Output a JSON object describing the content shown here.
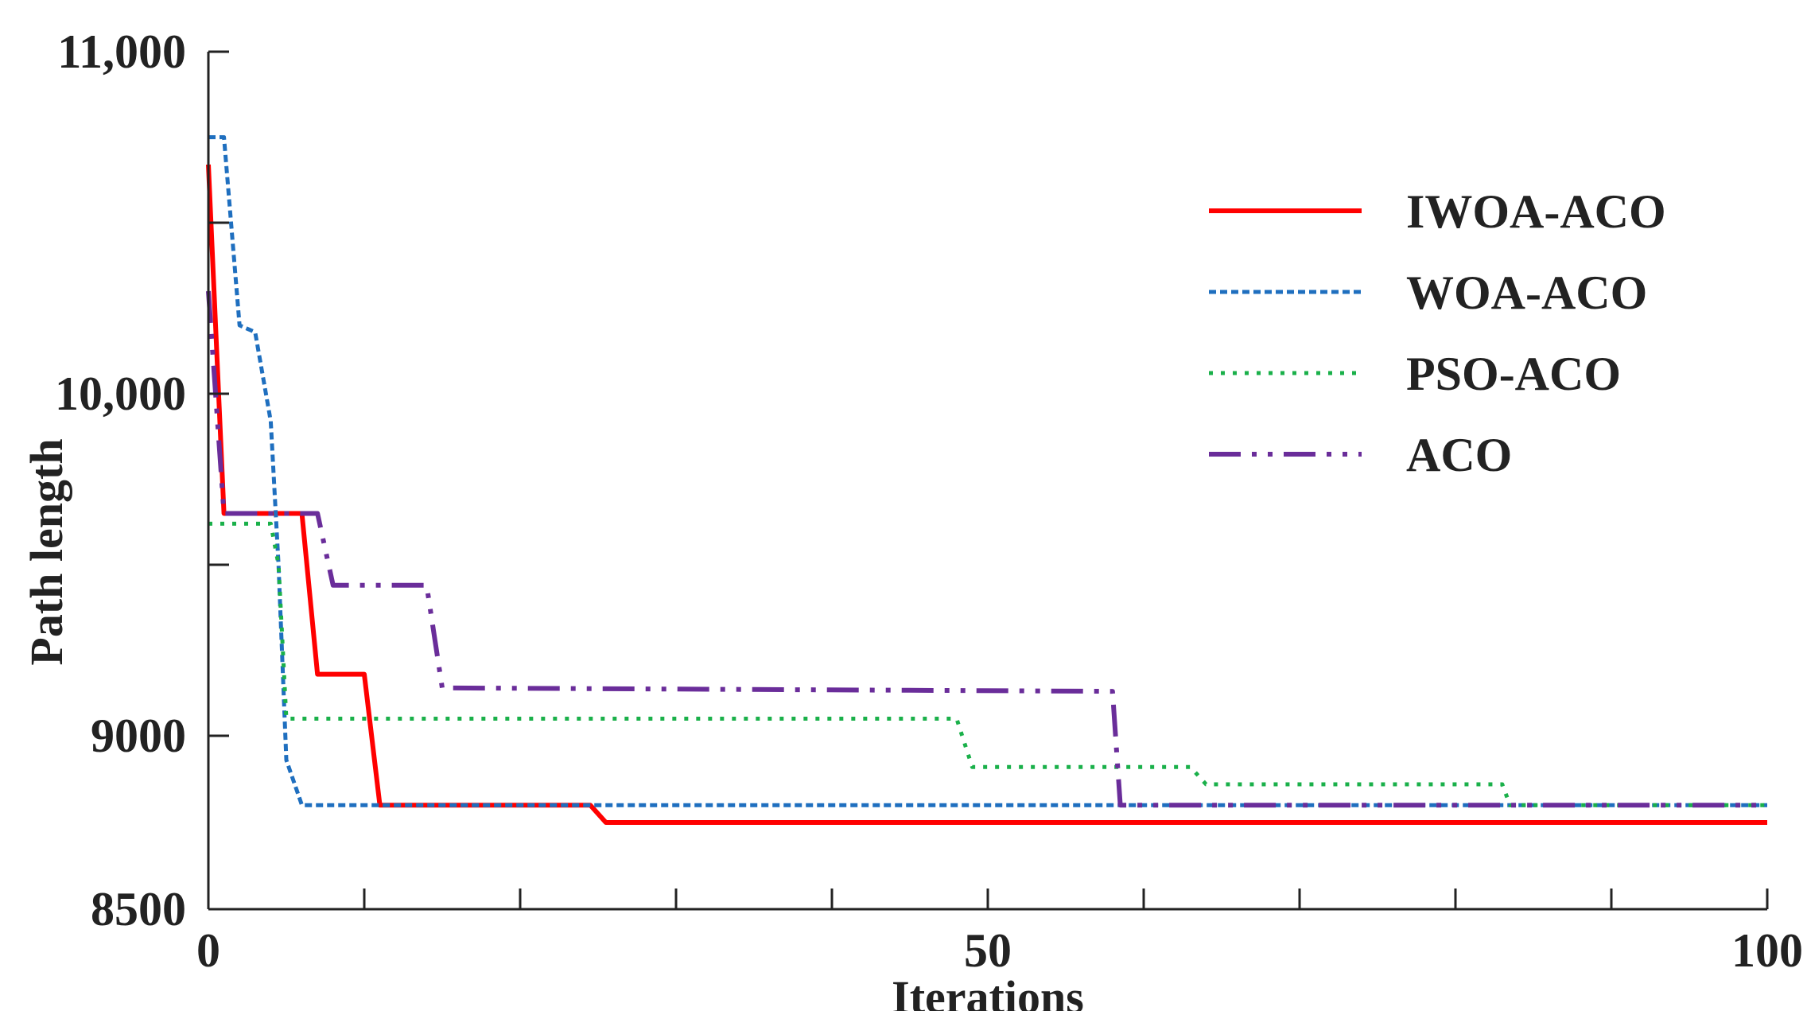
{
  "chart_data": {
    "type": "line",
    "xlabel": "Iterations",
    "ylabel": "Path length",
    "xlim": [
      0,
      100
    ],
    "ylim": [
      8500,
      11000
    ],
    "x_ticks": [
      0,
      50,
      100
    ],
    "x_tick_labels": [
      "0",
      "50",
      "100"
    ],
    "x_minor_ticks": [
      10,
      20,
      30,
      40,
      60,
      70,
      80,
      90
    ],
    "y_ticks": [
      8500,
      9000,
      10000,
      11000
    ],
    "y_tick_labels": [
      "8500",
      "9000",
      "10,000",
      "11,000"
    ],
    "y_minor_ticks": [
      9500,
      10500
    ],
    "legend_position": "top-right",
    "grid": false,
    "series": [
      {
        "name": "IWOA-ACO",
        "color": "#ff0000",
        "style": "solid",
        "points": [
          [
            0,
            10670
          ],
          [
            1,
            9650
          ],
          [
            6,
            9650
          ],
          [
            7,
            9180
          ],
          [
            10,
            9180
          ],
          [
            11,
            8800
          ],
          [
            24.5,
            8800
          ],
          [
            25.5,
            8750
          ],
          [
            100,
            8750
          ]
        ]
      },
      {
        "name": "WOA-ACO",
        "color": "#1f6fbf",
        "style": "dashed",
        "points": [
          [
            0,
            10750
          ],
          [
            1,
            10750
          ],
          [
            2,
            10200
          ],
          [
            3,
            10180
          ],
          [
            4,
            9920
          ],
          [
            4.5,
            9500
          ],
          [
            5,
            8930
          ],
          [
            6,
            8800
          ],
          [
            100,
            8800
          ]
        ]
      },
      {
        "name": "PSO-ACO",
        "color": "#1ab04a",
        "style": "dotted",
        "points": [
          [
            0,
            9620
          ],
          [
            4,
            9620
          ],
          [
            4.5,
            9500
          ],
          [
            5,
            9050
          ],
          [
            48,
            9050
          ],
          [
            49,
            8910
          ],
          [
            63,
            8910
          ],
          [
            64,
            8860
          ],
          [
            83,
            8860
          ],
          [
            83.5,
            8800
          ],
          [
            100,
            8800
          ]
        ]
      },
      {
        "name": "ACO",
        "color": "#6a2d9a",
        "style": "dashdotdot",
        "points": [
          [
            0,
            10300
          ],
          [
            1,
            9650
          ],
          [
            7,
            9650
          ],
          [
            8,
            9440
          ],
          [
            14,
            9440
          ],
          [
            15,
            9140
          ],
          [
            58,
            9130
          ],
          [
            58.5,
            8800
          ],
          [
            100,
            8800
          ]
        ]
      }
    ]
  }
}
